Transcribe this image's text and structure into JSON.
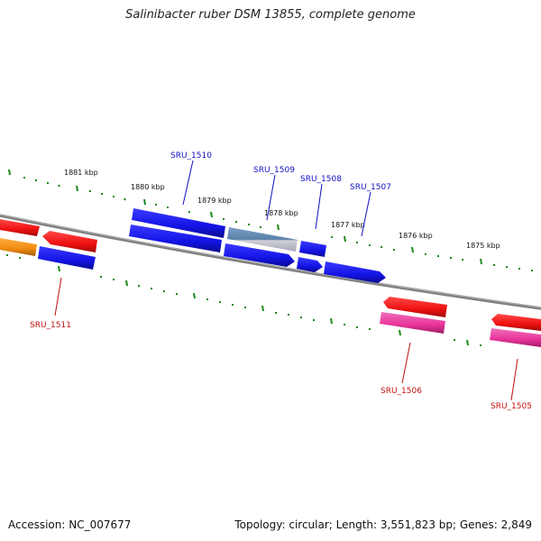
{
  "title": "Salinibacter ruber DSM 13855, complete genome",
  "footer": {
    "accession": "Accession: NC_007677",
    "summary": "Topology: circular; Length: 3,551,823 bp; Genes: 2,849"
  },
  "kbp_labels": [
    "1881 kbp",
    "1880 kbp",
    "1879 kbp",
    "1878 kbp",
    "1877 kbp",
    "1876 kbp",
    "1875 kbp"
  ],
  "gene_labels": {
    "sru_1510": "SRU_1510",
    "sru_1509": "SRU_1509",
    "sru_1508": "SRU_1508",
    "sru_1507": "SRU_1507",
    "sru_1511": "SRU_1511",
    "sru_1506": "SRU_1506",
    "sru_1505": "SRU_1505"
  },
  "colors": {
    "backbone": "#808080",
    "tick": "#1a8a1a",
    "blue_gene": "#1414e6",
    "steel_gene": "#5a80a8",
    "gray_gene": "#b8b8c8",
    "red_gene": "#ee1111",
    "orange_gene": "#f08a10",
    "pink_gene": "#e8339a",
    "blue_label": "#1010c0",
    "red_label": "#c01010"
  }
}
